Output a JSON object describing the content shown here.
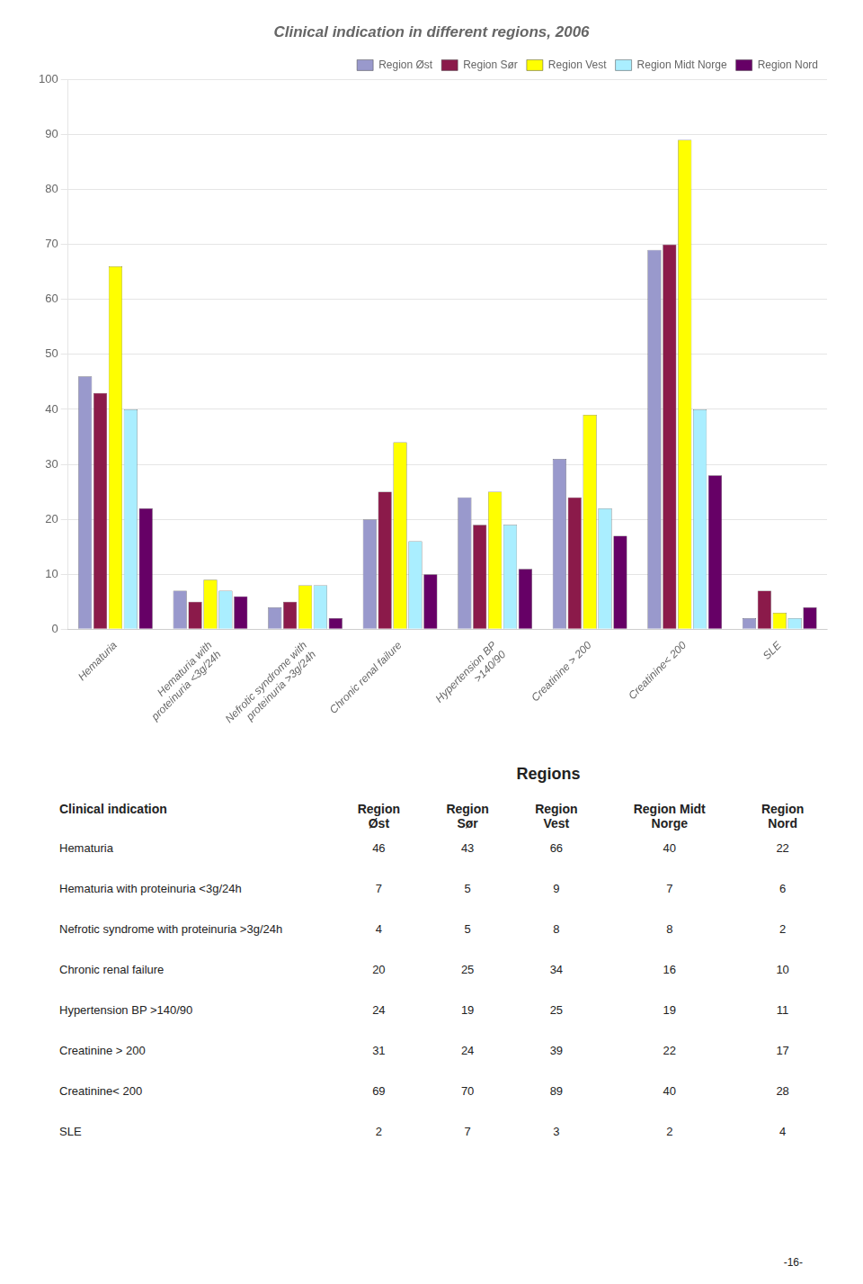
{
  "chart_data": {
    "type": "bar",
    "title": "Clinical indication in different regions, 2006",
    "categories": [
      "Hematuria",
      "Hematuria with\nproteinuria <3g/24h",
      "Nefrotic syndrome with\nproteinuria >3g/24h",
      "Chronic renal failure",
      "Hypertension BP\n>140/90",
      "Creatinine > 200",
      "Creatinine< 200",
      "SLE"
    ],
    "series": [
      {
        "name": "Region Øst",
        "color": "#9999cc",
        "values": [
          46,
          7,
          4,
          20,
          24,
          31,
          69,
          2
        ]
      },
      {
        "name": "Region Sør",
        "color": "#8b1a4a",
        "values": [
          43,
          5,
          5,
          25,
          19,
          24,
          70,
          7
        ]
      },
      {
        "name": "Region Vest",
        "color": "#ffff00",
        "values": [
          66,
          9,
          8,
          34,
          25,
          39,
          89,
          3
        ]
      },
      {
        "name": "Region Midt Norge",
        "color": "#aaeeff",
        "values": [
          40,
          7,
          8,
          16,
          19,
          22,
          40,
          2
        ]
      },
      {
        "name": "Region Nord",
        "color": "#660066",
        "values": [
          22,
          6,
          2,
          10,
          11,
          17,
          28,
          4
        ]
      }
    ],
    "ylim": [
      0,
      100
    ],
    "yticks": [
      0,
      10,
      20,
      30,
      40,
      50,
      60,
      70,
      80,
      90,
      100
    ],
    "grid": true,
    "legend": "upper right",
    "table": {
      "title": "Regions",
      "row_header": "Clinical indication",
      "col_headers": [
        "Region\nØst",
        "Region\nSør",
        "Region\nVest",
        "Region Midt\nNorge",
        "Region\nNord"
      ],
      "rows": [
        "Hematuria",
        "Hematuria with proteinuria <3g/24h",
        "Nefrotic syndrome with proteinuria >3g/24h",
        "Chronic renal failure",
        "Hypertension BP >140/90",
        "Creatinine > 200",
        "Creatinine< 200",
        "SLE"
      ],
      "values": [
        [
          46,
          43,
          66,
          40,
          22
        ],
        [
          7,
          5,
          9,
          7,
          6
        ],
        [
          4,
          5,
          8,
          8,
          2
        ],
        [
          20,
          25,
          34,
          16,
          10
        ],
        [
          24,
          19,
          25,
          19,
          11
        ],
        [
          31,
          24,
          39,
          22,
          17
        ],
        [
          69,
          70,
          89,
          40,
          28
        ],
        [
          2,
          7,
          3,
          2,
          4
        ]
      ]
    },
    "annotations": [
      "-16-"
    ]
  }
}
